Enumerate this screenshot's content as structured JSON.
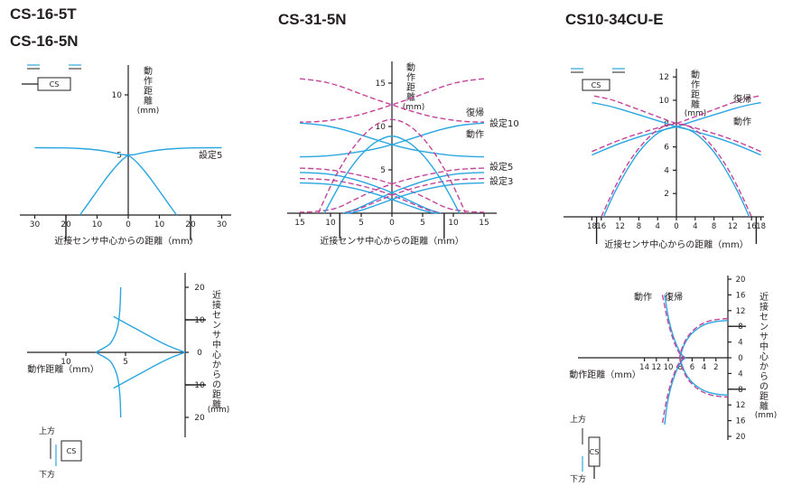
{
  "titles": {
    "left_line1": "CS-16-5T",
    "left_line2": "CS-16-5N",
    "center": "CS-31-5N",
    "right": "CS10-34CU-E"
  },
  "colors": {
    "operate": "#2aa6e0",
    "reset": "#c5449a",
    "axis": "#231f20"
  },
  "icons": {
    "sensor_icon": "sensor-head-icon",
    "target_arrows": "direction-arrow-icon"
  },
  "chart_data": [
    {
      "id": "cs16-horizontal",
      "type": "line",
      "xlabel": "近接センサ中心からの距離（mm）",
      "ylabel": "動作距離(mm)",
      "x_ticks": [
        "30",
        "20",
        "10",
        "0",
        "10",
        "20",
        "30"
      ],
      "y_ticks": [
        "5",
        "10"
      ],
      "xlim": [
        -33,
        33
      ],
      "ylim": [
        0,
        13
      ],
      "marker_x": [
        -20,
        20
      ],
      "sensor_label": "CS",
      "series": [
        {
          "name": "設定5",
          "kind": "operate",
          "x": [
            -30,
            -24,
            -18,
            -12,
            -8,
            -5,
            -3,
            -1.5,
            0
          ],
          "y": [
            5.6,
            5.6,
            5.57,
            5.48,
            5.35,
            5.2,
            5.08,
            5.01,
            5.0
          ]
        },
        {
          "name": "",
          "kind": "operate",
          "x": [
            0,
            1.5,
            3,
            5,
            8,
            12,
            18,
            24,
            30
          ],
          "y": [
            5.0,
            5.01,
            5.08,
            5.2,
            5.35,
            5.48,
            5.57,
            5.6,
            5.6
          ]
        },
        {
          "name": "",
          "kind": "operate",
          "x": [
            -15.5,
            -13,
            -10,
            -7,
            -4,
            -2,
            0
          ],
          "y": [
            0,
            0.9,
            2.0,
            3.1,
            4.05,
            4.6,
            5.0
          ]
        },
        {
          "name": "",
          "kind": "operate",
          "x": [
            0,
            2,
            4,
            7,
            10,
            13,
            15.5
          ],
          "y": [
            5.0,
            4.6,
            4.05,
            3.1,
            2.0,
            0.9,
            0
          ]
        }
      ]
    },
    {
      "id": "cs31-horizontal",
      "type": "line",
      "xlabel": "近接センサ中心からの距離（mm）",
      "ylabel": "動作距離(mm)",
      "x_ticks": [
        "15",
        "10",
        "5",
        "0",
        "5",
        "10",
        "15"
      ],
      "y_ticks": [
        "5",
        "10",
        "15"
      ],
      "xlim": [
        -16.5,
        16.5
      ],
      "ylim": [
        0,
        18.5
      ],
      "marker_x": [
        -8.5,
        8.5
      ],
      "legend_labels": [
        "復帰",
        "動作"
      ],
      "setting_labels": [
        "設定10",
        "設定5",
        "設定3"
      ],
      "series": [
        {
          "name": "復帰",
          "kind": "reset",
          "x": [
            -15,
            -12,
            -9,
            -6,
            -3,
            0,
            3,
            6,
            9,
            12,
            15
          ],
          "y": [
            15.5,
            15.3,
            14.8,
            14,
            13.2,
            12.5,
            11.8,
            11.2,
            10.8,
            10.55,
            10.5
          ]
        },
        {
          "name": "動作",
          "kind": "operate",
          "x": [
            -15,
            -12,
            -9,
            -6,
            -3,
            0,
            3,
            6,
            9,
            12,
            15
          ],
          "y": [
            10.4,
            10.25,
            9.85,
            9.25,
            8.55,
            7.9,
            7.35,
            7.0,
            6.7,
            6.55,
            6.5
          ]
        },
        {
          "name": "",
          "kind": "reset",
          "x": [
            15,
            12,
            9,
            6,
            3,
            0,
            -3,
            -6,
            -9,
            -12,
            -15
          ],
          "y": [
            15.5,
            15.3,
            14.8,
            14,
            13.2,
            12.5,
            11.8,
            11.2,
            10.8,
            10.55,
            10.5
          ]
        },
        {
          "name": "",
          "kind": "operate",
          "x": [
            15,
            12,
            9,
            6,
            3,
            0,
            -3,
            -6,
            -9,
            -12,
            -15
          ],
          "y": [
            10.4,
            10.25,
            9.85,
            9.25,
            8.55,
            7.9,
            7.35,
            7.0,
            6.7,
            6.55,
            6.5
          ]
        },
        {
          "name": "",
          "kind": "reset",
          "x": [
            -15,
            -12,
            -9,
            -6,
            -3,
            0,
            3,
            6,
            9,
            12,
            15
          ],
          "y": [
            5.2,
            5.15,
            4.9,
            4.5,
            4.0,
            3.4,
            2.6,
            1.6,
            0.5,
            0.2,
            0.1
          ]
        },
        {
          "name": "",
          "kind": "operate",
          "x": [
            -15,
            -12,
            -9,
            -6,
            -3,
            0,
            3,
            6,
            8
          ],
          "y": [
            4.7,
            4.65,
            4.4,
            3.9,
            3.2,
            2.4,
            1.4,
            0.4,
            0
          ]
        },
        {
          "name": "",
          "kind": "reset",
          "x": [
            15,
            12,
            9,
            6,
            3,
            0,
            -3,
            -6,
            -9,
            -12,
            -15
          ],
          "y": [
            5.2,
            5.15,
            4.9,
            4.5,
            4.0,
            3.4,
            2.6,
            1.6,
            0.5,
            0.2,
            0.1
          ]
        },
        {
          "name": "",
          "kind": "operate",
          "x": [
            15,
            12,
            9,
            6,
            3,
            0,
            -3,
            -6,
            -8
          ],
          "y": [
            4.7,
            4.65,
            4.4,
            3.9,
            3.2,
            2.4,
            1.4,
            0.4,
            0
          ]
        },
        {
          "name": "",
          "kind": "reset",
          "x": [
            -15,
            -12,
            -9,
            -6,
            -3,
            0,
            3,
            6,
            8
          ],
          "y": [
            4.0,
            3.95,
            3.75,
            3.35,
            2.8,
            2.1,
            1.2,
            0.3,
            0
          ]
        },
        {
          "name": "",
          "kind": "operate",
          "x": [
            -15,
            -12,
            -9,
            -6,
            -3,
            0,
            3,
            6,
            7.5
          ],
          "y": [
            3.5,
            3.45,
            3.25,
            2.85,
            2.3,
            1.6,
            0.8,
            0.1,
            0
          ]
        },
        {
          "name": "",
          "kind": "reset",
          "x": [
            15,
            12,
            9,
            6,
            3,
            0,
            -3,
            -6,
            -8
          ],
          "y": [
            4.0,
            3.95,
            3.75,
            3.35,
            2.8,
            2.1,
            1.2,
            0.3,
            0
          ]
        },
        {
          "name": "",
          "kind": "operate",
          "x": [
            15,
            12,
            9,
            6,
            3,
            0,
            -3,
            -6,
            -7.5
          ],
          "y": [
            3.5,
            3.45,
            3.25,
            2.85,
            2.3,
            1.6,
            0.8,
            0.1,
            0
          ]
        },
        {
          "name": "",
          "kind": "reset",
          "x": [
            -12,
            -10,
            -8,
            -6,
            -4,
            -2,
            0,
            2,
            4,
            6,
            8,
            10,
            12
          ],
          "y": [
            0,
            3.2,
            5.8,
            7.9,
            9.5,
            10.5,
            10.9,
            10.5,
            9.5,
            7.9,
            5.8,
            3.2,
            0
          ]
        },
        {
          "name": "",
          "kind": "operate",
          "x": [
            -11,
            -9,
            -7,
            -5,
            -3,
            -1,
            0,
            1,
            3,
            5,
            7,
            9,
            11
          ],
          "y": [
            0,
            2.7,
            5.0,
            6.8,
            8.1,
            8.8,
            8.9,
            8.8,
            8.1,
            6.8,
            5.0,
            2.7,
            0
          ]
        }
      ]
    },
    {
      "id": "cs10-horizontal",
      "type": "line",
      "xlabel": "近接センサ中心からの距離（mm）",
      "ylabel": "動作距離(mm)",
      "x_ticks": [
        "18",
        "16",
        "12",
        "8",
        "4",
        "0",
        "4",
        "8",
        "12",
        "16",
        "18"
      ],
      "y_ticks": [
        "2",
        "4",
        "6",
        "8",
        "10",
        "12"
      ],
      "xlim": [
        -19.5,
        19.5
      ],
      "ylim": [
        0,
        13
      ],
      "marker_x": [
        -17,
        17
      ],
      "legend_labels": [
        "復帰",
        "動作"
      ],
      "sensor_label": "CS",
      "series": [
        {
          "name": "復帰",
          "kind": "reset",
          "x": [
            -18,
            -14,
            -10,
            -6,
            -2,
            0,
            2,
            6,
            10,
            14,
            18
          ],
          "y": [
            5.6,
            6.3,
            6.9,
            7.4,
            7.85,
            8.0,
            8.3,
            8.9,
            9.5,
            10.1,
            10.4
          ]
        },
        {
          "name": "動作",
          "kind": "operate",
          "x": [
            -18,
            -14,
            -10,
            -6,
            -2,
            0,
            2,
            6,
            10,
            14,
            18
          ],
          "y": [
            5.3,
            6.0,
            6.6,
            7.1,
            7.55,
            7.7,
            8.0,
            8.5,
            9.0,
            9.5,
            9.8
          ]
        },
        {
          "name": "",
          "kind": "reset",
          "x": [
            18,
            14,
            10,
            6,
            2,
            0,
            -2,
            -6,
            -10,
            -14,
            -18
          ],
          "y": [
            5.6,
            6.3,
            6.9,
            7.4,
            7.85,
            8.0,
            8.3,
            8.9,
            9.5,
            10.1,
            10.4
          ]
        },
        {
          "name": "",
          "kind": "operate",
          "x": [
            18,
            14,
            10,
            6,
            2,
            0,
            -2,
            -6,
            -10,
            -14,
            -18
          ],
          "y": [
            5.3,
            6.0,
            6.6,
            7.1,
            7.55,
            7.7,
            8.0,
            8.5,
            9.0,
            9.5,
            9.8
          ]
        },
        {
          "name": "",
          "kind": "reset",
          "x": [
            -16,
            -14,
            -12,
            -10,
            -8,
            -6,
            -4,
            -2,
            0,
            2,
            4,
            6,
            8,
            10,
            12,
            14,
            16
          ],
          "y": [
            0,
            1.8,
            3.4,
            4.8,
            5.9,
            6.8,
            7.5,
            7.9,
            8.05,
            7.9,
            7.5,
            6.8,
            5.9,
            4.8,
            3.4,
            1.8,
            0
          ]
        },
        {
          "name": "",
          "kind": "operate",
          "x": [
            -15.5,
            -14,
            -12,
            -10,
            -8,
            -6,
            -4,
            -2,
            0,
            2,
            4,
            6,
            8,
            10,
            12,
            14,
            15.5
          ],
          "y": [
            0,
            1.4,
            3.0,
            4.4,
            5.6,
            6.5,
            7.2,
            7.6,
            7.75,
            7.6,
            7.2,
            6.5,
            5.6,
            4.4,
            3.0,
            1.4,
            0
          ]
        }
      ]
    },
    {
      "id": "cs16-vertical",
      "type": "line",
      "xlabel": "動作距離（mm）",
      "ylabel": "近接センサ中心からの距離",
      "yunit": "(mm)",
      "x_ticks": [
        "10",
        "5"
      ],
      "y_ticks": [
        "20",
        "10",
        "0",
        "10",
        "20"
      ],
      "xlim": [
        0,
        13
      ],
      "ylim": [
        -24,
        24
      ],
      "direction_labels": [
        "上方",
        "下方"
      ],
      "sensor_label": "CS",
      "series": [
        {
          "name": "",
          "kind": "operate",
          "x": [
            5.4,
            5.45,
            5.55,
            5.7,
            5.9,
            6.2,
            6.5,
            7.0,
            7.5
          ],
          "y": [
            20,
            14,
            10,
            7,
            5,
            3,
            2,
            1,
            0
          ]
        },
        {
          "name": "",
          "kind": "operate",
          "x": [
            7.5,
            7.0,
            6.5,
            6.2,
            5.9,
            5.7,
            5.55,
            5.45,
            5.4
          ],
          "y": [
            0,
            -1,
            -2,
            -3,
            -5,
            -7,
            -10,
            -14,
            -20
          ]
        },
        {
          "name": "",
          "kind": "operate",
          "x": [
            6.0,
            5.0,
            4.0,
            3.0,
            2.0,
            1.0,
            0
          ],
          "y": [
            -11,
            -9,
            -7,
            -5,
            -3,
            -1.3,
            0
          ]
        },
        {
          "name": "",
          "kind": "operate",
          "x": [
            0,
            1.0,
            2.0,
            3.0,
            4.0,
            5.0,
            6.0
          ],
          "y": [
            0,
            1.3,
            3,
            5,
            7,
            9,
            11
          ]
        }
      ]
    },
    {
      "id": "cs10-vertical",
      "type": "line",
      "xlabel": "動作距離（mm）",
      "ylabel": "近接センサ中心からの距離",
      "yunit": "(mm)",
      "x_ticks": [
        "14",
        "12",
        "10",
        "8",
        "6",
        "4",
        "2"
      ],
      "y_ticks": [
        "20",
        "16",
        "12",
        "8",
        "4",
        "0",
        "4",
        "8",
        "12",
        "16",
        "20"
      ],
      "xlim": [
        0,
        17
      ],
      "ylim": [
        -21,
        21
      ],
      "legend_labels": [
        "動作",
        "復帰"
      ],
      "direction_labels": [
        "上方",
        "下方"
      ],
      "sensor_label": "CS",
      "series": [
        {
          "name": "動作",
          "kind": "operate",
          "x": [
            10.6,
            10.4,
            10.0,
            9.3,
            8.7,
            8.1,
            7.5,
            7.0
          ],
          "y": [
            16,
            14,
            10,
            6,
            3.5,
            1.5,
            0.3,
            0
          ]
        },
        {
          "name": "",
          "kind": "operate",
          "x": [
            7.0,
            7.5,
            8.1,
            8.7,
            9.3,
            10.0,
            10.4,
            10.6
          ],
          "y": [
            0,
            -0.3,
            -1.5,
            -3.5,
            -6,
            -10,
            -14,
            -17
          ]
        },
        {
          "name": "復帰",
          "kind": "reset",
          "x": [
            11.0,
            10.7,
            10.2,
            9.5,
            8.9,
            8.3,
            7.7,
            7.2
          ],
          "y": [
            16,
            14,
            10,
            6,
            3.5,
            1.5,
            0.3,
            0
          ]
        },
        {
          "name": "",
          "kind": "reset",
          "x": [
            7.2,
            7.7,
            8.3,
            8.9,
            9.5,
            10.2,
            10.7,
            11.0
          ],
          "y": [
            0,
            -0.3,
            -1.5,
            -3.5,
            -6,
            -10,
            -14,
            -17
          ]
        },
        {
          "name": "",
          "kind": "operate",
          "x": [
            0,
            2,
            4,
            5.5,
            6.5,
            7.3,
            7.8,
            8.0
          ],
          "y": [
            9.5,
            9.3,
            8.5,
            7.0,
            5.5,
            3.5,
            1.5,
            0
          ]
        },
        {
          "name": "",
          "kind": "operate",
          "x": [
            8.0,
            7.8,
            7.3,
            6.5,
            5.5,
            4,
            2,
            0
          ],
          "y": [
            0,
            -1.5,
            -3.5,
            -5.5,
            -7.0,
            -8.5,
            -9.3,
            -9.5
          ]
        },
        {
          "name": "",
          "kind": "reset",
          "x": [
            0,
            2,
            4,
            5.5,
            6.6,
            7.4,
            7.9,
            8.1
          ],
          "y": [
            10,
            9.8,
            9.0,
            7.5,
            5.8,
            3.7,
            1.6,
            0
          ]
        },
        {
          "name": "",
          "kind": "reset",
          "x": [
            8.1,
            7.9,
            7.4,
            6.6,
            5.5,
            4,
            2,
            0
          ],
          "y": [
            0,
            -1.6,
            -3.7,
            -5.8,
            -7.5,
            -9.0,
            -9.8,
            -10
          ]
        }
      ]
    }
  ]
}
